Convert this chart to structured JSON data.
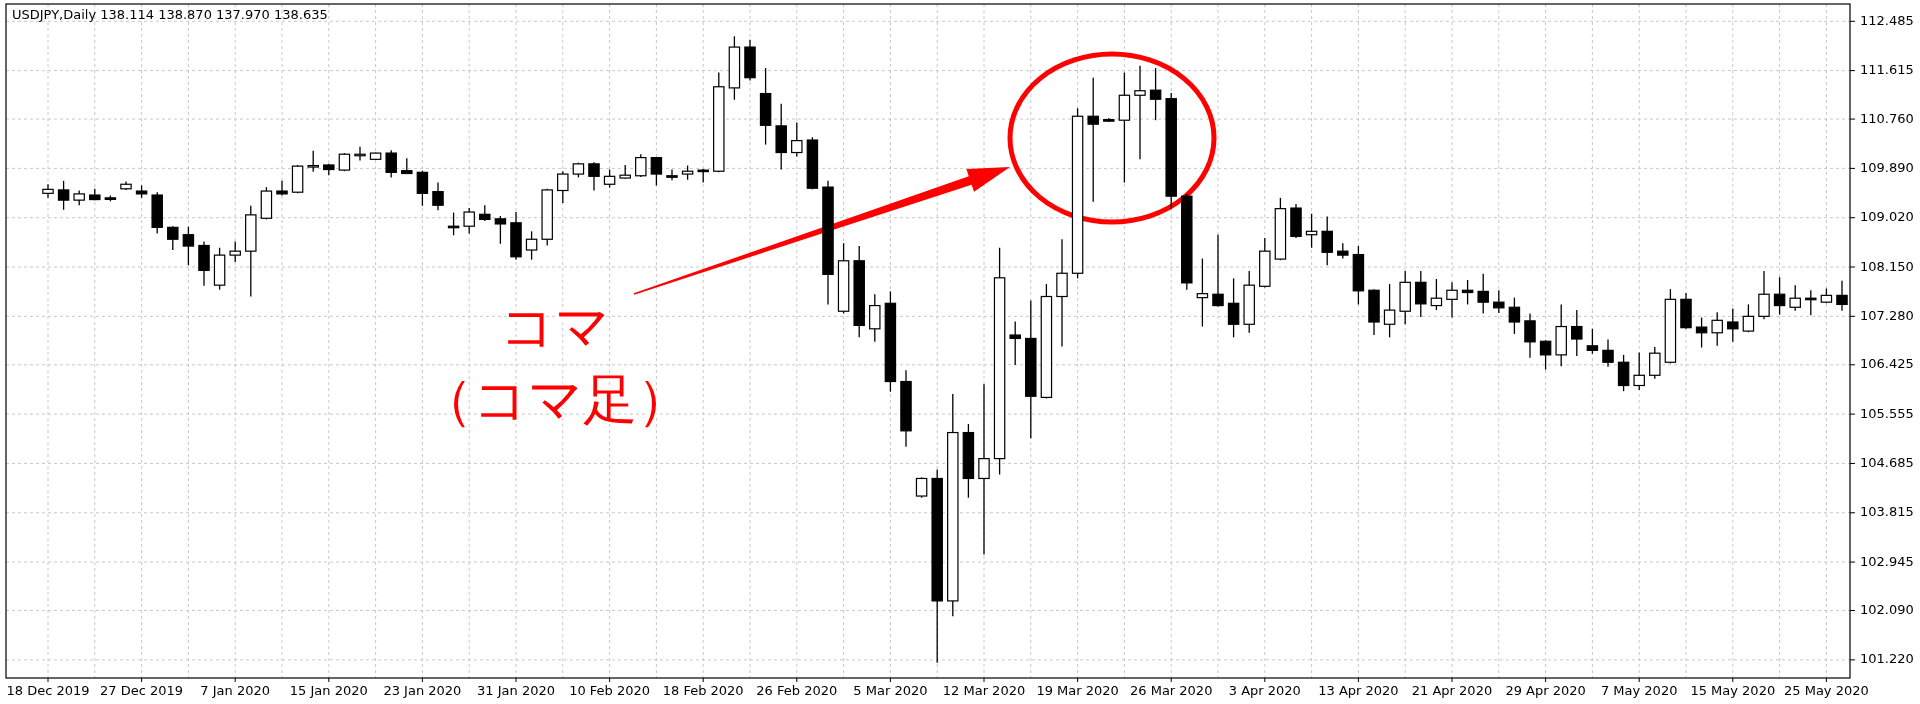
{
  "chart_data": {
    "type": "candlestick",
    "title": "USDJPY,Daily  138.114 138.870 137.970 138.635",
    "annotations": [
      "コマ",
      "（コマ足）"
    ],
    "grid": true,
    "ylim": [
      100.9,
      112.79
    ],
    "yticks": [
      112.485,
      111.615,
      {
        "value": 110.76,
        "label": "110.760"
      },
      {
        "value": 109.89,
        "label": "109.890"
      },
      {
        "value": 109.02,
        "label": "109.020"
      },
      {
        "value": 108.15,
        "label": "108.150"
      },
      {
        "value": 107.28,
        "label": "107.280"
      },
      106.425,
      105.555,
      104.685,
      103.815,
      102.945,
      {
        "value": 102.09,
        "label": "102.090"
      },
      {
        "value": 101.22,
        "label": "101.220"
      }
    ],
    "categories": [
      "18 Dec 2019",
      null,
      null,
      null,
      null,
      null,
      "27 Dec 2019",
      null,
      null,
      null,
      null,
      null,
      "7 Jan 2020",
      null,
      null,
      null,
      null,
      null,
      "15 Jan 2020",
      null,
      null,
      null,
      null,
      null,
      "23 Jan 2020",
      null,
      null,
      null,
      null,
      null,
      "31 Jan 2020",
      null,
      null,
      null,
      null,
      null,
      "10 Feb 2020",
      null,
      null,
      null,
      null,
      null,
      "18 Feb 2020",
      null,
      null,
      null,
      null,
      null,
      "26 Feb 2020",
      null,
      null,
      null,
      null,
      null,
      "5 Mar 2020",
      null,
      null,
      null,
      null,
      null,
      "12 Mar 2020",
      null,
      null,
      null,
      null,
      null,
      "19 Mar 2020",
      null,
      null,
      null,
      null,
      null,
      "26 Mar 2020",
      null,
      null,
      null,
      null,
      null,
      "3 Apr 2020",
      null,
      null,
      null,
      null,
      null,
      "13 Apr 2020",
      null,
      null,
      null,
      null,
      null,
      "21 Apr 2020",
      null,
      null,
      null,
      null,
      null,
      "29 Apr 2020",
      null,
      null,
      null,
      null,
      null,
      "7 May 2020",
      null,
      null,
      null,
      null,
      null,
      "15 May 2020",
      null,
      null,
      null,
      null,
      null,
      "25 May 2020",
      null
    ],
    "ohlc": [
      [
        109.45,
        109.61,
        109.37,
        109.52
      ],
      [
        109.51,
        109.67,
        109.16,
        109.33
      ],
      [
        109.33,
        109.5,
        109.24,
        109.44
      ],
      [
        109.42,
        109.53,
        109.33,
        109.34
      ],
      [
        109.37,
        109.41,
        109.31,
        109.36
      ],
      [
        109.53,
        109.66,
        109.51,
        109.61
      ],
      [
        109.49,
        109.59,
        109.37,
        109.44
      ],
      [
        109.42,
        109.47,
        108.74,
        108.85
      ],
      [
        108.85,
        108.87,
        108.45,
        108.64
      ],
      [
        108.72,
        108.86,
        108.18,
        108.52
      ],
      [
        108.53,
        108.6,
        107.82,
        108.09
      ],
      [
        107.83,
        108.49,
        107.75,
        108.36
      ],
      [
        108.36,
        108.6,
        108.24,
        108.43
      ],
      [
        108.43,
        109.23,
        107.63,
        109.07
      ],
      [
        109.01,
        109.56,
        108.99,
        109.49
      ],
      [
        109.49,
        109.67,
        109.41,
        109.44
      ],
      [
        109.47,
        109.95,
        109.45,
        109.93
      ],
      [
        109.92,
        110.2,
        109.83,
        109.94
      ],
      [
        109.95,
        109.97,
        109.77,
        109.87
      ],
      [
        109.86,
        110.16,
        109.84,
        110.14
      ],
      [
        110.13,
        110.27,
        110.03,
        110.14
      ],
      [
        110.05,
        110.17,
        110.04,
        110.16
      ],
      [
        110.16,
        110.21,
        109.73,
        109.82
      ],
      [
        109.85,
        110.07,
        109.79,
        109.8
      ],
      [
        109.82,
        109.85,
        109.23,
        109.45
      ],
      [
        109.48,
        109.64,
        109.15,
        109.24
      ],
      [
        108.87,
        109.11,
        108.71,
        108.85
      ],
      [
        108.87,
        109.19,
        108.74,
        109.12
      ],
      [
        109.08,
        109.24,
        108.96,
        108.99
      ],
      [
        109.0,
        109.05,
        108.56,
        108.91
      ],
      [
        108.93,
        109.12,
        108.28,
        108.33
      ],
      [
        108.45,
        108.78,
        108.28,
        108.64
      ],
      [
        108.64,
        109.53,
        108.53,
        109.51
      ],
      [
        109.5,
        109.84,
        109.28,
        109.79
      ],
      [
        109.79,
        109.99,
        109.73,
        109.97
      ],
      [
        109.97,
        110.0,
        109.5,
        109.75
      ],
      [
        109.61,
        109.87,
        109.55,
        109.75
      ],
      [
        109.72,
        109.95,
        109.71,
        109.77
      ],
      [
        109.76,
        110.14,
        109.74,
        110.08
      ],
      [
        110.08,
        110.09,
        109.59,
        109.79
      ],
      [
        109.76,
        109.87,
        109.68,
        109.75
      ],
      [
        109.79,
        109.94,
        109.69,
        109.84
      ],
      [
        109.86,
        109.88,
        109.64,
        109.84
      ],
      [
        109.84,
        111.58,
        109.82,
        111.33
      ],
      [
        111.31,
        112.22,
        111.1,
        112.03
      ],
      [
        112.03,
        112.16,
        111.44,
        111.49
      ],
      [
        111.21,
        111.66,
        110.31,
        110.65
      ],
      [
        110.64,
        111.03,
        109.87,
        110.17
      ],
      [
        110.17,
        110.7,
        110.1,
        110.38
      ],
      [
        110.39,
        110.44,
        109.52,
        109.54
      ],
      [
        109.56,
        109.67,
        107.49,
        108.02
      ],
      [
        107.37,
        108.57,
        107.33,
        108.26
      ],
      [
        108.26,
        108.52,
        106.91,
        107.12
      ],
      [
        107.06,
        107.67,
        106.83,
        107.47
      ],
      [
        107.51,
        107.72,
        105.95,
        106.13
      ],
      [
        106.13,
        106.33,
        104.98,
        105.26
      ],
      [
        104.11,
        104.44,
        104.08,
        104.42
      ],
      [
        104.42,
        104.58,
        101.17,
        102.26
      ],
      [
        102.26,
        105.91,
        101.99,
        105.23
      ],
      [
        105.23,
        105.38,
        104.08,
        104.42
      ],
      [
        104.42,
        106.08,
        103.08,
        104.77
      ],
      [
        104.77,
        108.49,
        104.49,
        107.96
      ],
      [
        106.95,
        107.19,
        106.42,
        106.89
      ],
      [
        106.89,
        107.56,
        105.13,
        105.87
      ],
      [
        105.85,
        107.85,
        105.83,
        107.63
      ],
      [
        107.63,
        108.64,
        106.75,
        108.04
      ],
      [
        108.04,
        110.95,
        107.95,
        110.81
      ],
      [
        110.81,
        111.49,
        109.3,
        110.67
      ],
      [
        110.75,
        110.78,
        110.71,
        110.73
      ],
      [
        110.74,
        111.58,
        109.64,
        111.18
      ],
      [
        111.18,
        111.7,
        110.05,
        111.26
      ],
      [
        111.27,
        111.66,
        110.74,
        111.11
      ],
      [
        111.12,
        111.22,
        109.18,
        109.4
      ],
      [
        109.4,
        109.44,
        107.75,
        107.87
      ],
      [
        107.61,
        108.3,
        107.1,
        107.68
      ],
      [
        107.67,
        108.72,
        107.45,
        107.47
      ],
      [
        107.51,
        107.95,
        106.91,
        107.14
      ],
      [
        107.14,
        108.08,
        106.99,
        107.83
      ],
      [
        107.81,
        108.66,
        107.79,
        108.43
      ],
      [
        108.29,
        109.37,
        108.27,
        109.18
      ],
      [
        109.19,
        109.26,
        108.66,
        108.69
      ],
      [
        108.72,
        109.09,
        108.49,
        108.78
      ],
      [
        108.78,
        109.04,
        108.18,
        108.41
      ],
      [
        108.43,
        108.57,
        108.3,
        108.36
      ],
      [
        108.37,
        108.52,
        107.49,
        107.73
      ],
      [
        107.74,
        107.76,
        106.95,
        107.18
      ],
      [
        107.14,
        107.85,
        106.91,
        107.39
      ],
      [
        107.37,
        108.08,
        107.14,
        107.88
      ],
      [
        107.88,
        108.08,
        107.27,
        107.5
      ],
      [
        107.47,
        107.94,
        107.39,
        107.6
      ],
      [
        107.58,
        107.88,
        107.26,
        107.74
      ],
      [
        107.74,
        107.92,
        107.49,
        107.7
      ],
      [
        107.72,
        108.03,
        107.33,
        107.53
      ],
      [
        107.53,
        107.74,
        107.34,
        107.43
      ],
      [
        107.44,
        107.61,
        106.97,
        107.18
      ],
      [
        107.2,
        107.33,
        106.55,
        106.83
      ],
      [
        106.84,
        106.86,
        106.34,
        106.6
      ],
      [
        106.6,
        107.49,
        106.4,
        107.1
      ],
      [
        107.1,
        107.39,
        106.58,
        106.88
      ],
      [
        106.76,
        107.06,
        106.62,
        106.68
      ],
      [
        106.68,
        106.87,
        106.39,
        106.47
      ],
      [
        106.47,
        106.6,
        105.96,
        106.06
      ],
      [
        106.06,
        106.64,
        105.98,
        106.24
      ],
      [
        106.24,
        106.74,
        106.18,
        106.63
      ],
      [
        106.47,
        107.76,
        106.45,
        107.58
      ],
      [
        107.58,
        107.69,
        107.06,
        107.08
      ],
      [
        107.09,
        107.26,
        106.73,
        106.99
      ],
      [
        106.99,
        107.35,
        106.76,
        107.21
      ],
      [
        107.18,
        107.42,
        106.83,
        107.06
      ],
      [
        107.02,
        107.49,
        107.0,
        107.28
      ],
      [
        107.28,
        108.08,
        107.23,
        107.67
      ],
      [
        107.67,
        107.97,
        107.31,
        107.47
      ],
      [
        107.44,
        107.83,
        107.38,
        107.6
      ],
      [
        107.6,
        107.74,
        107.3,
        107.58
      ],
      [
        107.53,
        107.77,
        107.51,
        107.65
      ],
      [
        107.65,
        107.91,
        107.38,
        107.49
      ]
    ]
  }
}
